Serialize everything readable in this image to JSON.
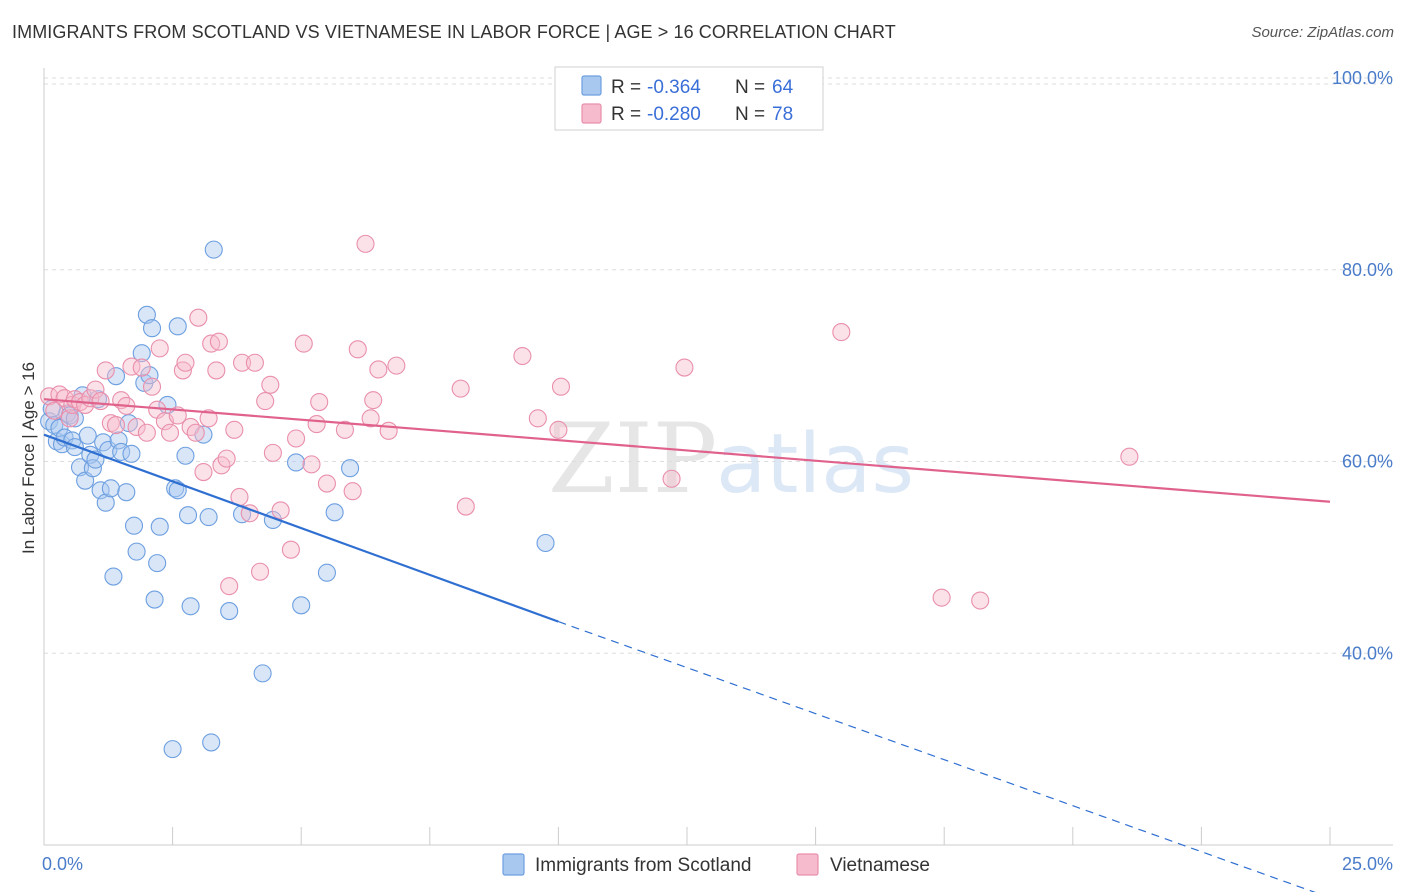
{
  "header": {
    "title": "IMMIGRANTS FROM SCOTLAND VS VIETNAMESE IN LABOR FORCE | AGE > 16 CORRELATION CHART",
    "source": "Source: ZipAtlas.com"
  },
  "watermark": {
    "part1": "ZIP",
    "part2": "atlas"
  },
  "colors": {
    "blue_fill": "#a9c8f0",
    "blue_stroke": "#6d9fe0",
    "blue_line": "#2f6fd1",
    "pink_fill": "#f6bccd",
    "pink_stroke": "#e98fac",
    "pink_line": "#e0628c"
  },
  "chart_data": {
    "type": "scatter",
    "title": "IMMIGRANTS FROM SCOTLAND VS VIETNAMESE IN LABOR FORCE | AGE > 16 CORRELATION CHART",
    "xlabel": "",
    "ylabel": "In Labor Force | Age > 16",
    "xlim": [
      0,
      25
    ],
    "ylim": [
      20,
      100
    ],
    "x_tick_labels": {
      "left": "0.0%",
      "right": "25.0%"
    },
    "y_ticks": [
      {
        "value": 100,
        "label": "100.0%"
      },
      {
        "value": 80,
        "label": "80.0%"
      },
      {
        "value": 60,
        "label": "60.0%"
      },
      {
        "value": 40,
        "label": "40.0%"
      }
    ],
    "grid": true,
    "legend": {
      "position": "top-center",
      "entries": [
        {
          "r_label": "R = ",
          "r_value": "-0.364",
          "n_label": "N = ",
          "n_value": "64"
        },
        {
          "r_label": "R = ",
          "r_value": "-0.280",
          "n_label": "N = ",
          "n_value": "78"
        }
      ]
    },
    "series": [
      {
        "name": "Immigrants from Scotland",
        "color": "blue",
        "trend": {
          "x0": 0,
          "y0": 62.8,
          "x1": 10.0,
          "y1": 43.3,
          "dash_to_x": 25,
          "dash_to_y": 14.5
        },
        "points": [
          [
            0.1,
            64.2
          ],
          [
            0.15,
            65.5
          ],
          [
            0.2,
            63.8
          ],
          [
            0.25,
            62.1
          ],
          [
            0.3,
            63.5
          ],
          [
            0.35,
            61.8
          ],
          [
            0.4,
            62.5
          ],
          [
            0.45,
            65.0
          ],
          [
            0.5,
            64.8
          ],
          [
            0.55,
            62.2
          ],
          [
            0.6,
            64.5
          ],
          [
            0.7,
            59.4
          ],
          [
            0.75,
            66.9
          ],
          [
            0.8,
            58.0
          ],
          [
            0.85,
            62.7
          ],
          [
            0.9,
            60.7
          ],
          [
            0.95,
            59.3
          ],
          [
            1.0,
            60.2
          ],
          [
            1.05,
            66.5
          ],
          [
            1.1,
            57.0
          ],
          [
            1.15,
            62.0
          ],
          [
            1.2,
            55.7
          ],
          [
            1.25,
            61.2
          ],
          [
            1.3,
            57.2
          ],
          [
            1.35,
            48.0
          ],
          [
            1.4,
            68.9
          ],
          [
            1.45,
            62.2
          ],
          [
            1.5,
            61.0
          ],
          [
            1.6,
            56.8
          ],
          [
            1.65,
            64.0
          ],
          [
            1.7,
            60.8
          ],
          [
            1.75,
            53.3
          ],
          [
            1.8,
            50.6
          ],
          [
            1.9,
            71.3
          ],
          [
            1.95,
            68.2
          ],
          [
            2.0,
            75.3
          ],
          [
            2.05,
            69.0
          ],
          [
            2.1,
            73.9
          ],
          [
            2.15,
            45.6
          ],
          [
            2.2,
            49.4
          ],
          [
            2.25,
            53.2
          ],
          [
            2.4,
            65.9
          ],
          [
            2.5,
            30.0
          ],
          [
            2.55,
            57.2
          ],
          [
            2.6,
            57.0
          ],
          [
            2.6,
            74.1
          ],
          [
            2.75,
            60.6
          ],
          [
            2.8,
            54.4
          ],
          [
            2.85,
            44.9
          ],
          [
            3.1,
            62.8
          ],
          [
            3.2,
            54.2
          ],
          [
            3.25,
            30.7
          ],
          [
            3.3,
            82.1
          ],
          [
            3.6,
            44.4
          ],
          [
            3.85,
            54.5
          ],
          [
            4.25,
            37.9
          ],
          [
            4.45,
            53.9
          ],
          [
            4.9,
            59.9
          ],
          [
            5.0,
            45.0
          ],
          [
            5.5,
            48.4
          ],
          [
            5.65,
            54.7
          ],
          [
            5.95,
            59.3
          ],
          [
            9.75,
            51.5
          ],
          [
            0.6,
            61.5
          ]
        ]
      },
      {
        "name": "Vietnamese",
        "color": "pink",
        "trend": {
          "x0": 0,
          "y0": 66.5,
          "x1": 25,
          "y1": 55.8
        },
        "points": [
          [
            0.1,
            66.8
          ],
          [
            0.2,
            65.3
          ],
          [
            0.3,
            67.0
          ],
          [
            0.4,
            66.6
          ],
          [
            0.5,
            64.5
          ],
          [
            0.55,
            65.9
          ],
          [
            0.6,
            66.5
          ],
          [
            0.7,
            66.2
          ],
          [
            0.8,
            65.9
          ],
          [
            0.9,
            66.6
          ],
          [
            1.0,
            67.5
          ],
          [
            1.1,
            66.3
          ],
          [
            1.2,
            69.5
          ],
          [
            1.3,
            64.0
          ],
          [
            1.4,
            63.8
          ],
          [
            1.5,
            66.4
          ],
          [
            1.6,
            65.8
          ],
          [
            1.7,
            69.9
          ],
          [
            1.8,
            63.6
          ],
          [
            1.9,
            69.8
          ],
          [
            2.0,
            63.0
          ],
          [
            2.1,
            67.8
          ],
          [
            2.2,
            65.4
          ],
          [
            2.25,
            71.8
          ],
          [
            2.35,
            64.2
          ],
          [
            2.45,
            63.0
          ],
          [
            2.6,
            64.8
          ],
          [
            2.7,
            69.5
          ],
          [
            2.75,
            70.3
          ],
          [
            2.85,
            63.6
          ],
          [
            2.95,
            63.0
          ],
          [
            3.0,
            75.0
          ],
          [
            3.1,
            58.9
          ],
          [
            3.2,
            64.5
          ],
          [
            3.25,
            72.3
          ],
          [
            3.35,
            69.5
          ],
          [
            3.4,
            72.5
          ],
          [
            3.45,
            59.6
          ],
          [
            3.55,
            60.3
          ],
          [
            3.6,
            47.0
          ],
          [
            3.7,
            63.3
          ],
          [
            3.8,
            56.3
          ],
          [
            3.85,
            70.3
          ],
          [
            4.0,
            54.6
          ],
          [
            4.1,
            70.3
          ],
          [
            4.2,
            48.5
          ],
          [
            4.3,
            66.3
          ],
          [
            4.4,
            68.0
          ],
          [
            4.45,
            60.9
          ],
          [
            4.6,
            54.9
          ],
          [
            4.8,
            50.8
          ],
          [
            4.9,
            62.4
          ],
          [
            5.05,
            72.3
          ],
          [
            5.2,
            59.7
          ],
          [
            5.3,
            63.9
          ],
          [
            5.35,
            66.2
          ],
          [
            5.5,
            57.7
          ],
          [
            5.85,
            63.3
          ],
          [
            6.0,
            56.9
          ],
          [
            6.1,
            71.7
          ],
          [
            6.25,
            82.7
          ],
          [
            6.35,
            64.5
          ],
          [
            6.4,
            66.4
          ],
          [
            6.5,
            69.6
          ],
          [
            6.7,
            63.2
          ],
          [
            6.85,
            70.0
          ],
          [
            8.1,
            67.6
          ],
          [
            8.2,
            55.3
          ],
          [
            9.3,
            71.0
          ],
          [
            9.6,
            64.5
          ],
          [
            10.0,
            63.3
          ],
          [
            10.05,
            67.8
          ],
          [
            12.2,
            58.2
          ],
          [
            12.45,
            69.8
          ],
          [
            15.5,
            73.5
          ],
          [
            17.45,
            45.8
          ],
          [
            18.2,
            45.5
          ],
          [
            21.1,
            60.5
          ]
        ]
      }
    ]
  }
}
